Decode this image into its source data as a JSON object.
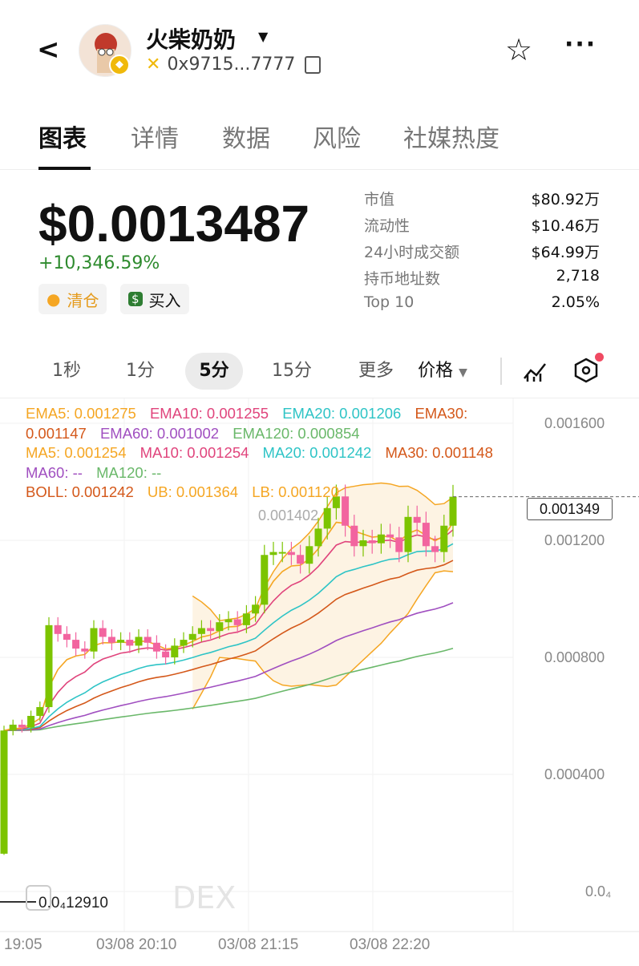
{
  "header": {
    "title": "火柴奶奶",
    "address": "0x9715...7777",
    "back_icon": "chevron-left-icon",
    "chain_icon": "bnb-chain-icon"
  },
  "tabs": [
    {
      "label": "图表",
      "active": true
    },
    {
      "label": "详情"
    },
    {
      "label": "数据"
    },
    {
      "label": "风险"
    },
    {
      "label": "社媒热度"
    }
  ],
  "price": {
    "value": "$0.0013487",
    "change": "+10,346.59%",
    "change_color": "#2e8b2e"
  },
  "actions": {
    "sell": "清仓",
    "buy": "买入"
  },
  "stats": [
    {
      "k": "市值",
      "v": "$80.92万"
    },
    {
      "k": "流动性",
      "v": "$10.46万"
    },
    {
      "k": "24小时成交额",
      "v": "$64.99万"
    },
    {
      "k": "持币地址数",
      "v": "2,718"
    },
    {
      "k": "Top 10",
      "v": "2.05%"
    }
  ],
  "intervals": [
    {
      "label": "1秒"
    },
    {
      "label": "1分"
    },
    {
      "label": "5分",
      "active": true
    },
    {
      "label": "15分"
    },
    {
      "label": "更多"
    },
    {
      "label": "价格"
    }
  ],
  "legend": {
    "ema5": "EMA5: 0.001275",
    "ema10": "EMA10: 0.001255",
    "ema20": "EMA20: 0.001206",
    "ema30": "EMA30: 0.001147",
    "ema60": "EMA60: 0.001002",
    "ema120": "EMA120: 0.000854",
    "ma5": "MA5: 0.001254",
    "ma10": "MA10: 0.001254",
    "ma20": "MA20: 0.001242",
    "ma30": "MA30: 0.001148",
    "ma60": "MA60: --",
    "ma120": "MA120: --",
    "boll": "BOLL: 0.001242",
    "ub": "UB: 0.001364",
    "lb": "LB: 0.001120"
  },
  "colors": {
    "up": "#7cc400",
    "down": "#f2649f",
    "ema5": "#f5a623",
    "ema10": "#e0447c",
    "ema20": "#2ec4c6",
    "ema30": "#d4581a",
    "ema60": "#a04fc0",
    "ema120": "#6ab86a"
  },
  "chart_data": {
    "type": "candlestick",
    "y_ticks": [
      "0.001600",
      "0.001200",
      "0.000800",
      "0.000400",
      "0.0₄"
    ],
    "y_tick_values": [
      0.0016,
      0.0012,
      0.0008,
      0.0004,
      0
    ],
    "x_ticks": [
      "19:05",
      "03/08 20:10",
      "03/08 21:15",
      "03/08 22:20"
    ],
    "current_price": "0.001349",
    "high_marker": "0.001402",
    "low_marker": "0.0₄12910",
    "watermark": "DEX",
    "closes": [
      0.00055,
      0.00057,
      0.00056,
      0.0006,
      0.00063,
      0.00091,
      0.00088,
      0.00086,
      0.00083,
      0.00082,
      0.0009,
      0.00087,
      0.00085,
      0.00086,
      0.00084,
      0.00087,
      0.00085,
      0.00082,
      0.0008,
      0.00084,
      0.00086,
      0.00088,
      0.0009,
      0.00089,
      0.00092,
      0.00093,
      0.00091,
      0.00095,
      0.00098,
      0.00115,
      0.00116,
      0.00116,
      0.00115,
      0.00112,
      0.00118,
      0.00124,
      0.00131,
      0.00135,
      0.00125,
      0.00118,
      0.0012,
      0.00119,
      0.00122,
      0.00121,
      0.00116,
      0.00128,
      0.00126,
      0.00118,
      0.00116,
      0.00125,
      0.001349
    ],
    "first_open": 0.000129
  }
}
